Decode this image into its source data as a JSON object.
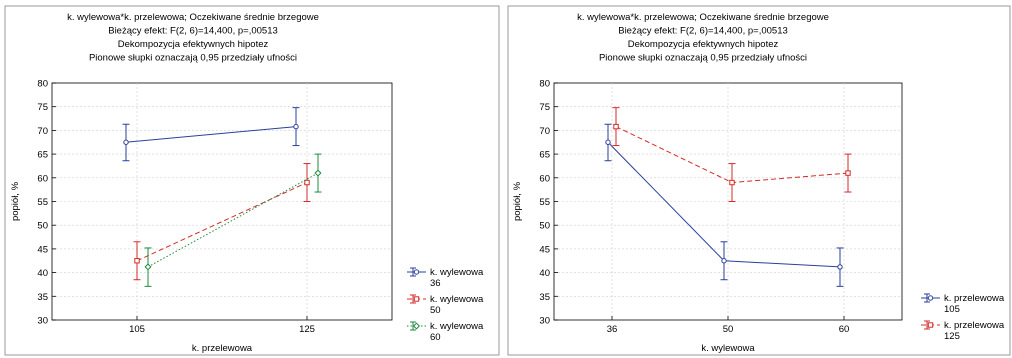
{
  "chart_data": [
    {
      "type": "line",
      "title": [
        "k. wylewowa*k. przelewowa; Oczekiwane średnie brzegowe",
        "Bieżący efekt: F(2, 6)=14,400, p=,00513",
        "Dekompozycja efektywnych hipotez",
        "Pionowe słupki oznaczają 0,95 przedziały ufności"
      ],
      "xlabel": "k. przelewowa",
      "ylabel": "popiół, %",
      "categories": [
        "105",
        "125"
      ],
      "ylim": [
        30,
        80
      ],
      "yticks": [
        30,
        35,
        40,
        45,
        50,
        55,
        60,
        65,
        70,
        75,
        80
      ],
      "grid": true,
      "legend_position": "bottom-right",
      "series": [
        {
          "name": "k. wylewowa 36",
          "color": "#2b3f9c",
          "dash": "solid",
          "marker": "circle",
          "values": [
            67.5,
            70.8
          ],
          "lower": [
            63.6,
            66.8
          ],
          "upper": [
            71.3,
            74.8
          ]
        },
        {
          "name": "k. wylewowa 50",
          "color": "#d42a2a",
          "dash": "dashed",
          "marker": "square",
          "values": [
            42.5,
            59.0
          ],
          "lower": [
            38.5,
            55.0
          ],
          "upper": [
            46.5,
            63.0
          ]
        },
        {
          "name": "k. wylewowa 60",
          "color": "#1e8a3c",
          "dash": "dotted",
          "marker": "diamond",
          "values": [
            41.2,
            61.0
          ],
          "lower": [
            37.1,
            57.0
          ],
          "upper": [
            45.2,
            65.0
          ]
        }
      ]
    },
    {
      "type": "line",
      "title": [
        "k. wylewowa*k. przelewowa; Oczekiwane średnie brzegowe",
        "Bieżący efekt: F(2, 6)=14,400, p=,00513",
        "Dekompozycja efektywnych hipotez",
        "Pionowe słupki oznaczają 0,95 przedziały ufności"
      ],
      "xlabel": "k. wylewowa",
      "ylabel": "popiół, %",
      "categories": [
        "36",
        "50",
        "60"
      ],
      "ylim": [
        30,
        80
      ],
      "yticks": [
        30,
        35,
        40,
        45,
        50,
        55,
        60,
        65,
        70,
        75,
        80
      ],
      "grid": true,
      "legend_position": "bottom-right",
      "series": [
        {
          "name": "k. przelewowa 105",
          "color": "#2b3f9c",
          "dash": "solid",
          "marker": "circle",
          "values": [
            67.5,
            42.5,
            41.2
          ],
          "lower": [
            63.6,
            38.5,
            37.1
          ],
          "upper": [
            71.3,
            46.5,
            45.2
          ]
        },
        {
          "name": "k. przelewowa 125",
          "color": "#d42a2a",
          "dash": "dashed",
          "marker": "square",
          "values": [
            70.8,
            59.0,
            61.0
          ],
          "lower": [
            66.8,
            55.0,
            57.0
          ],
          "upper": [
            74.8,
            63.0,
            65.0
          ]
        }
      ]
    }
  ]
}
